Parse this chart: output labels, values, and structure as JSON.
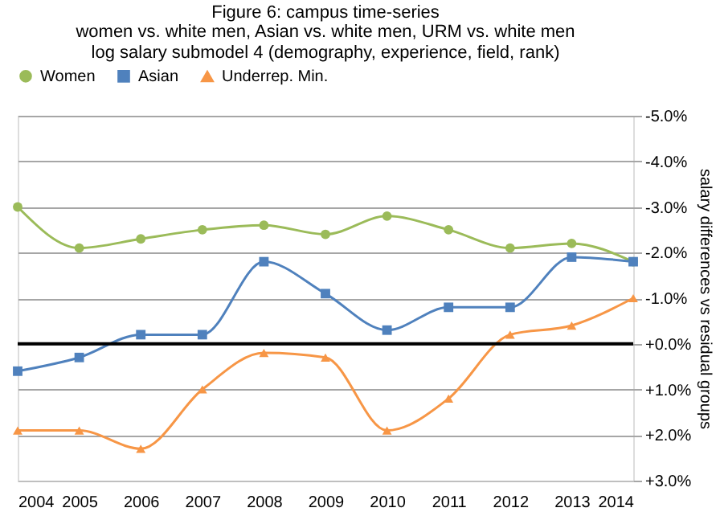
{
  "chart_data": {
    "type": "line",
    "title": "Figure 6: campus time-series",
    "subtitle": "women vs. white men, Asian vs. white men, URM vs. white men\nlog salary submodel 4 (demography, experience, field, rank)",
    "ylabel": "salary differences  vs  residual groups",
    "x": [
      2004,
      2005,
      2006,
      2007,
      2008,
      2009,
      2010,
      2011,
      2012,
      2013,
      2014
    ],
    "series": [
      {
        "name": "Women",
        "color": "#9bbb59",
        "marker": "circle",
        "values": [
          -3.0,
          -2.1,
          -2.3,
          -2.5,
          -2.6,
          -2.4,
          -2.8,
          -2.5,
          -2.1,
          -2.2,
          -1.8
        ]
      },
      {
        "name": "Asian",
        "color": "#4f81bd",
        "marker": "square",
        "values": [
          0.6,
          0.3,
          -0.2,
          -0.2,
          -1.8,
          -1.1,
          -0.3,
          -0.8,
          -0.8,
          -1.9,
          -1.8
        ]
      },
      {
        "name": "Underrep. Min.",
        "color": "#f79646",
        "marker": "triangle",
        "values": [
          1.9,
          1.9,
          2.3,
          1.0,
          0.2,
          0.3,
          1.9,
          1.2,
          -0.2,
          -0.4,
          -1.0
        ]
      }
    ],
    "xlim": [
      2004,
      2014
    ],
    "xticks": [
      2004,
      2005,
      2006,
      2007,
      2008,
      2009,
      2010,
      2011,
      2012,
      2013,
      2014
    ],
    "ylim": [
      3,
      -5
    ],
    "yticks": [
      {
        "value": -5,
        "label": "-5.0%"
      },
      {
        "value": -4,
        "label": "-4.0%"
      },
      {
        "value": -3,
        "label": "-3.0%"
      },
      {
        "value": -2,
        "label": "-2.0%"
      },
      {
        "value": -1,
        "label": "-1.0%"
      },
      {
        "value": 0,
        "label": "+0.0%"
      },
      {
        "value": 1,
        "label": "+1.0%"
      },
      {
        "value": 2,
        "label": "+2.0%"
      },
      {
        "value": 3,
        "label": "+3.0%"
      }
    ],
    "ref_lines": [
      {
        "axis": "y",
        "value": 0,
        "label": null,
        "color": "#000000"
      }
    ],
    "grid": "y",
    "legend": "top",
    "line_style": "solid"
  }
}
